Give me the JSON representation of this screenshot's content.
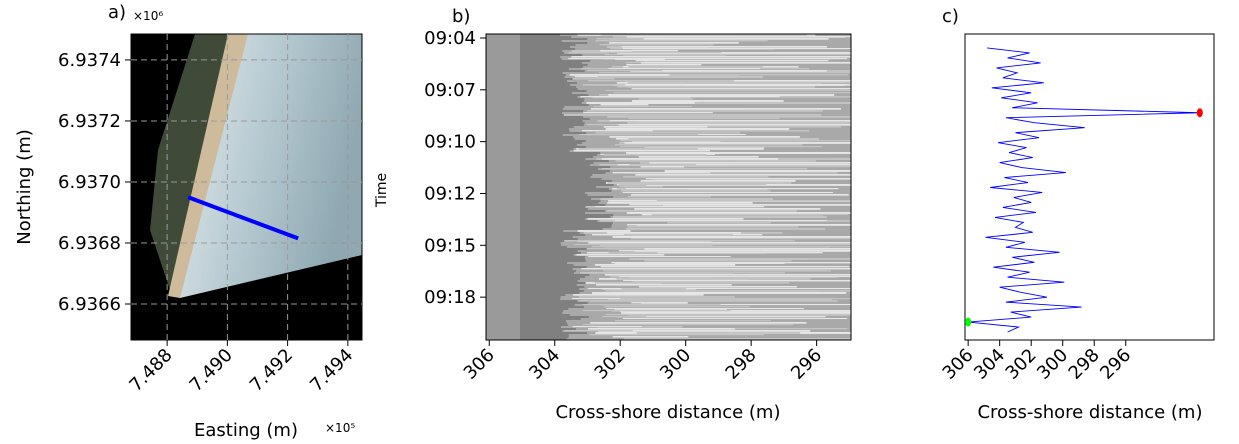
{
  "chart_data": [
    {
      "type": "image",
      "panel_label": "a)",
      "xlabel": "Easting (m)",
      "ylabel": "Northing (m)",
      "x_offset_label": "×10⁵",
      "y_offset_label": "×10⁶",
      "xlim": [
        748680,
        749447
      ],
      "ylim": [
        6936482,
        6937485
      ],
      "xticks": [
        {
          "value": 748800,
          "label": "7.488"
        },
        {
          "value": 749000,
          "label": "7.490"
        },
        {
          "value": 749200,
          "label": "7.492"
        },
        {
          "value": 749400,
          "label": "7.494"
        }
      ],
      "yticks": [
        {
          "value": 6936600,
          "label": "6.9366"
        },
        {
          "value": 6936800,
          "label": "6.9368"
        },
        {
          "value": 6937000,
          "label": "6.9370"
        },
        {
          "value": 6937200,
          "label": "6.9372"
        },
        {
          "value": 6937400,
          "label": "6.9374"
        }
      ],
      "grid": true,
      "transect": {
        "x": [
          748870,
          749235
        ],
        "y": [
          6936950,
          6936815
        ],
        "color": "#0000ff"
      }
    },
    {
      "type": "image",
      "panel_label": "b)",
      "xlabel": "Cross-shore distance (m)",
      "ylabel": "Time",
      "xlim": [
        306.1,
        294.95
      ],
      "ylim": [
        "09:04:18",
        "09:19:39"
      ],
      "xticks": [
        306,
        304,
        302,
        300,
        298,
        296
      ],
      "yticks": [
        {
          "value": "09:04:30",
          "label": "09:04"
        },
        {
          "value": "09:07:06",
          "label": "09:07"
        },
        {
          "value": "09:09:42",
          "label": "09:10"
        },
        {
          "value": "09:12:18",
          "label": "09:12"
        },
        {
          "value": "09:14:54",
          "label": "09:15"
        },
        {
          "value": "09:17:30",
          "label": "09:18"
        }
      ]
    },
    {
      "type": "line",
      "panel_label": "c)",
      "xlabel": "Cross-shore distance (m)",
      "xlim": [
        306.2,
        290.4
      ],
      "ylim": [
        "09:04:18",
        "09:19:39"
      ],
      "xticks": [
        306,
        304,
        302,
        300,
        298,
        296
      ],
      "x": [
        "09:05:00",
        "09:05:15",
        "09:05:30",
        "09:05:45",
        "09:06:00",
        "09:06:15",
        "09:06:30",
        "09:06:45",
        "09:07:00",
        "09:07:15",
        "09:07:30",
        "09:07:45",
        "09:08:00",
        "09:08:15",
        "09:08:30",
        "09:08:45",
        "09:09:00",
        "09:09:15",
        "09:09:30",
        "09:09:45",
        "09:10:00",
        "09:10:15",
        "09:10:30",
        "09:10:45",
        "09:11:00",
        "09:11:15",
        "09:11:30",
        "09:11:45",
        "09:12:00",
        "09:12:15",
        "09:12:30",
        "09:12:45",
        "09:13:00",
        "09:13:15",
        "09:13:30",
        "09:13:45",
        "09:14:00",
        "09:14:15",
        "09:14:30",
        "09:14:45",
        "09:15:00",
        "09:15:15",
        "09:15:30",
        "09:15:45",
        "09:16:00",
        "09:16:15",
        "09:16:30",
        "09:16:45",
        "09:17:00",
        "09:17:15",
        "09:17:30",
        "09:17:45",
        "09:18:00",
        "09:18:15",
        "09:18:30",
        "09:18:45",
        "09:19:00",
        "09:19:15"
      ],
      "series": [
        {
          "color": "#0000ff",
          "values": [
            304.8,
            302.1,
            303.5,
            301.4,
            304.2,
            302.9,
            303.8,
            301.2,
            304.5,
            302.0,
            303.9,
            301.6,
            303.2,
            291.3,
            303.6,
            301.8,
            298.6,
            303.0,
            301.5,
            304.1,
            302.3,
            303.4,
            301.9,
            304.0,
            302.6,
            299.8,
            303.7,
            302.2,
            304.6,
            301.3,
            303.1,
            302.0,
            303.8,
            301.7,
            304.3,
            302.5,
            303.0,
            301.9,
            304.9,
            302.4,
            303.6,
            300.2,
            303.2,
            301.8,
            304.4,
            302.1,
            303.5,
            299.9,
            304.0,
            302.7,
            301.0,
            303.6,
            298.8,
            303.3,
            302.0,
            306.0,
            302.8,
            303.5
          ]
        }
      ],
      "points": [
        {
          "x": "09:08:15",
          "value": 291.3,
          "color": "#ff0000"
        },
        {
          "x": "09:18:45",
          "value": 306.0,
          "color": "#00ff00"
        }
      ]
    }
  ]
}
